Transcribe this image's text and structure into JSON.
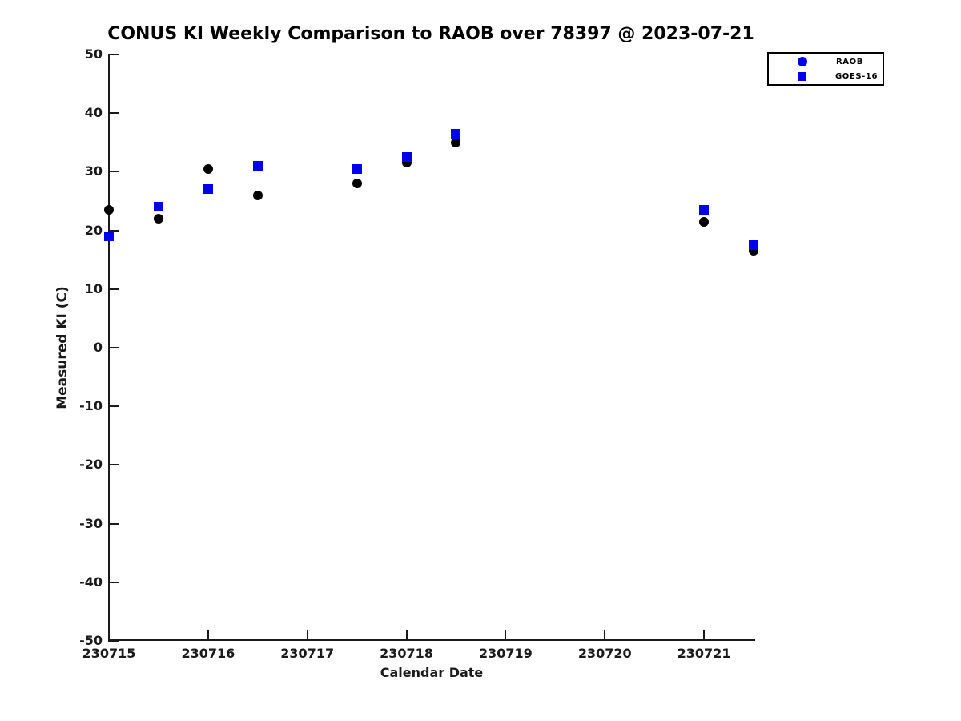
{
  "chart_data": {
    "type": "scatter",
    "title": "CONUS KI Weekly Comparison to RAOB over 78397 @ 2023-07-21",
    "xlabel": "Calendar Date",
    "ylabel": "Measured KI (C)",
    "xlim": [
      230715,
      230721.5
    ],
    "ylim": [
      -50,
      50
    ],
    "x_ticks": [
      230715,
      230716,
      230717,
      230718,
      230719,
      230720,
      230721
    ],
    "y_ticks": [
      -50,
      -40,
      -30,
      -20,
      -10,
      0,
      10,
      20,
      30,
      40,
      50
    ],
    "grid": false,
    "legend_position": "top-right",
    "x": [
      230715,
      230715.5,
      230716,
      230716.5,
      230717.5,
      230718,
      230718.5,
      230721,
      230721.5
    ],
    "series": [
      {
        "name": "RAOB",
        "marker": "circle",
        "color": "#000000",
        "legend_color": "#0000EE",
        "values": [
          23.5,
          22,
          30.5,
          26,
          28,
          31.5,
          35,
          21.5,
          16.5
        ]
      },
      {
        "name": "GOES-16",
        "marker": "square",
        "color": "#0000EE",
        "legend_color": "#0000EE",
        "values": [
          19,
          24,
          27,
          31,
          30.5,
          32.5,
          36.5,
          23.5,
          17.5
        ]
      }
    ]
  },
  "colors": {
    "axis": "#1a1a1a",
    "title": "#000000",
    "background": "#ffffff",
    "accent_blue": "#0000EE",
    "marker_black": "#000000"
  }
}
